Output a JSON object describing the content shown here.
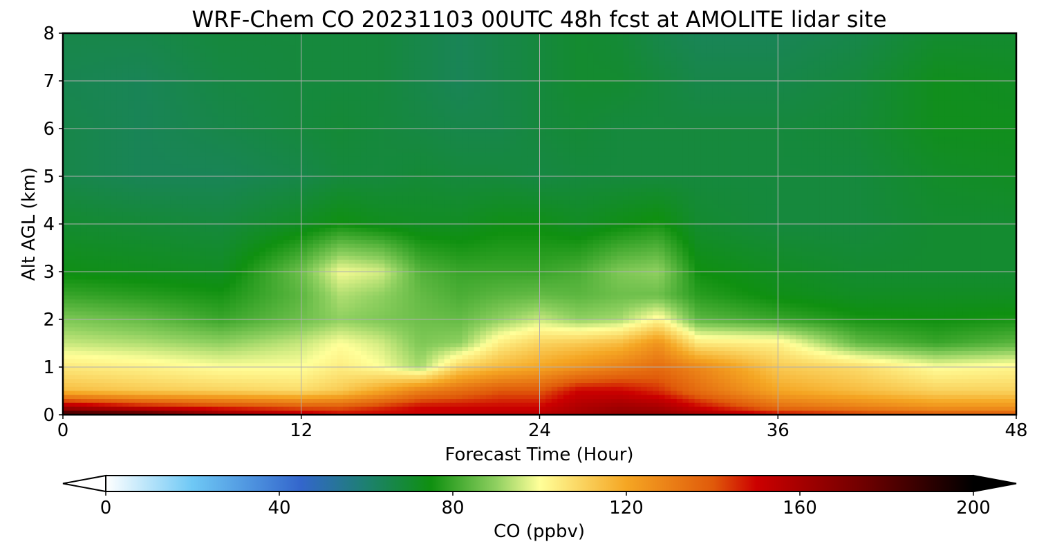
{
  "chart_data": {
    "type": "heatmap",
    "title": "WRF-Chem CO  20231103 00UTC 48h fcst at AMOLITE lidar site",
    "xlabel": "Forecast Time (Hour)",
    "ylabel": "Alt AGL (km)",
    "xlim": [
      0,
      48
    ],
    "ylim": [
      0,
      8
    ],
    "xticks": [
      0,
      12,
      24,
      36,
      48
    ],
    "yticks": [
      0,
      1,
      2,
      3,
      4,
      5,
      6,
      7,
      8
    ],
    "grid": true,
    "colorbar": {
      "label": "CO  (ppbv)",
      "range": [
        0,
        200
      ],
      "extend": "both",
      "ticks": [
        0,
        40,
        80,
        120,
        160,
        200
      ],
      "orientation": "horizontal",
      "placement": "bottom",
      "stops": [
        {
          "value": 0,
          "color": "#ffffff"
        },
        {
          "value": 20,
          "color": "#6ec8f5"
        },
        {
          "value": 45,
          "color": "#3366cc"
        },
        {
          "value": 60,
          "color": "#1d8070"
        },
        {
          "value": 75,
          "color": "#0f9010"
        },
        {
          "value": 90,
          "color": "#8fd060"
        },
        {
          "value": 100,
          "color": "#ffff99"
        },
        {
          "value": 120,
          "color": "#f5a623"
        },
        {
          "value": 140,
          "color": "#e05a0a"
        },
        {
          "value": 150,
          "color": "#cc0000"
        },
        {
          "value": 175,
          "color": "#6e0000"
        },
        {
          "value": 200,
          "color": "#000000"
        }
      ]
    },
    "x": [
      0,
      4,
      8,
      12,
      14,
      16,
      18,
      20,
      22,
      24,
      26,
      28,
      30,
      32,
      36,
      40,
      44,
      48
    ],
    "y": [
      0,
      0.15,
      0.5,
      1.0,
      1.5,
      2.0,
      2.5,
      3.0,
      4.0,
      5.0,
      6.0,
      7.0,
      8.0
    ],
    "z": [
      [
        190,
        185,
        165,
        155,
        150,
        150,
        150,
        152,
        155,
        155,
        160,
        165,
        165,
        160,
        150,
        145,
        140,
        140
      ],
      [
        160,
        150,
        145,
        140,
        140,
        145,
        150,
        150,
        150,
        150,
        158,
        162,
        160,
        150,
        135,
        130,
        125,
        125
      ],
      [
        115,
        112,
        110,
        108,
        112,
        120,
        130,
        135,
        140,
        140,
        150,
        150,
        145,
        135,
        120,
        115,
        110,
        110
      ],
      [
        105,
        103,
        100,
        100,
        104,
        100,
        92,
        110,
        116,
        120,
        125,
        130,
        135,
        128,
        112,
        108,
        100,
        102
      ],
      [
        95,
        93,
        90,
        95,
        100,
        96,
        88,
        90,
        104,
        110,
        112,
        115,
        125,
        105,
        103,
        85,
        80,
        84
      ],
      [
        88,
        85,
        80,
        86,
        90,
        88,
        86,
        85,
        90,
        95,
        90,
        92,
        102,
        84,
        80,
        76,
        75,
        76
      ],
      [
        80,
        78,
        76,
        84,
        93,
        90,
        85,
        82,
        84,
        85,
        84,
        86,
        86,
        78,
        74,
        72,
        72,
        72
      ],
      [
        74,
        73,
        72,
        86,
        99,
        96,
        83,
        80,
        80,
        80,
        82,
        88,
        90,
        75,
        72,
        70,
        70,
        70
      ],
      [
        70,
        69,
        68,
        72,
        75,
        73,
        72,
        72,
        74,
        74,
        72,
        74,
        76,
        70,
        68,
        68,
        70,
        70
      ],
      [
        66,
        64,
        64,
        66,
        68,
        68,
        69,
        68,
        68,
        67,
        68,
        68,
        68,
        68,
        68,
        68,
        71,
        72
      ],
      [
        66,
        64,
        66,
        68,
        69,
        68,
        67,
        66,
        66,
        68,
        69,
        68,
        68,
        68,
        68,
        69,
        73,
        73
      ],
      [
        65,
        64,
        67,
        68,
        68,
        68,
        66,
        64,
        66,
        68,
        70,
        70,
        68,
        66,
        66,
        68,
        73,
        72
      ],
      [
        66,
        66,
        68,
        68,
        68,
        68,
        66,
        64,
        66,
        68,
        70,
        69,
        66,
        64,
        64,
        66,
        70,
        70
      ]
    ]
  }
}
